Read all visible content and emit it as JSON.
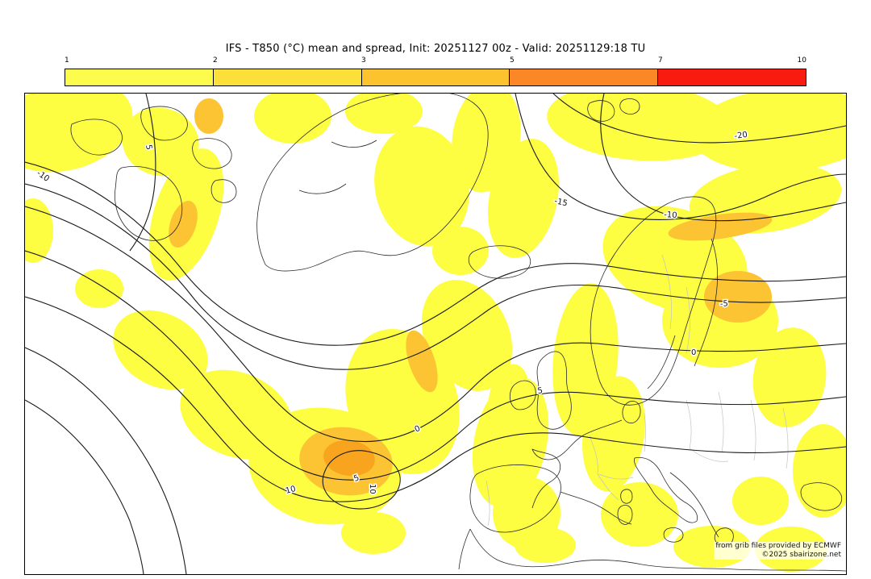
{
  "header": {
    "title": "IFS - T850 (°C) mean and spread, Init: 20251127 00z - Valid: 20251129:18 TU"
  },
  "colorbar": {
    "labels": [
      "1",
      "2",
      "3",
      "5",
      "7",
      "10"
    ],
    "segment_colors": [
      "#fcfc4c",
      "#fddf3a",
      "#fdc32e",
      "#fc8726",
      "#f81c10"
    ]
  },
  "map": {
    "contour_labels": {
      "m20": "-20",
      "m15": "-15",
      "m10": "-10",
      "m5": "-5",
      "p0": "0",
      "p5": "5",
      "p10": "10"
    },
    "colors": {
      "spread_low": "#fdfd42",
      "spread_mid": "#fcc332",
      "spread_high": "#f8a41e"
    },
    "attribution_line1": "from grib files provided by ECMWF",
    "attribution_line2": "©2025 sbairizone.net"
  }
}
